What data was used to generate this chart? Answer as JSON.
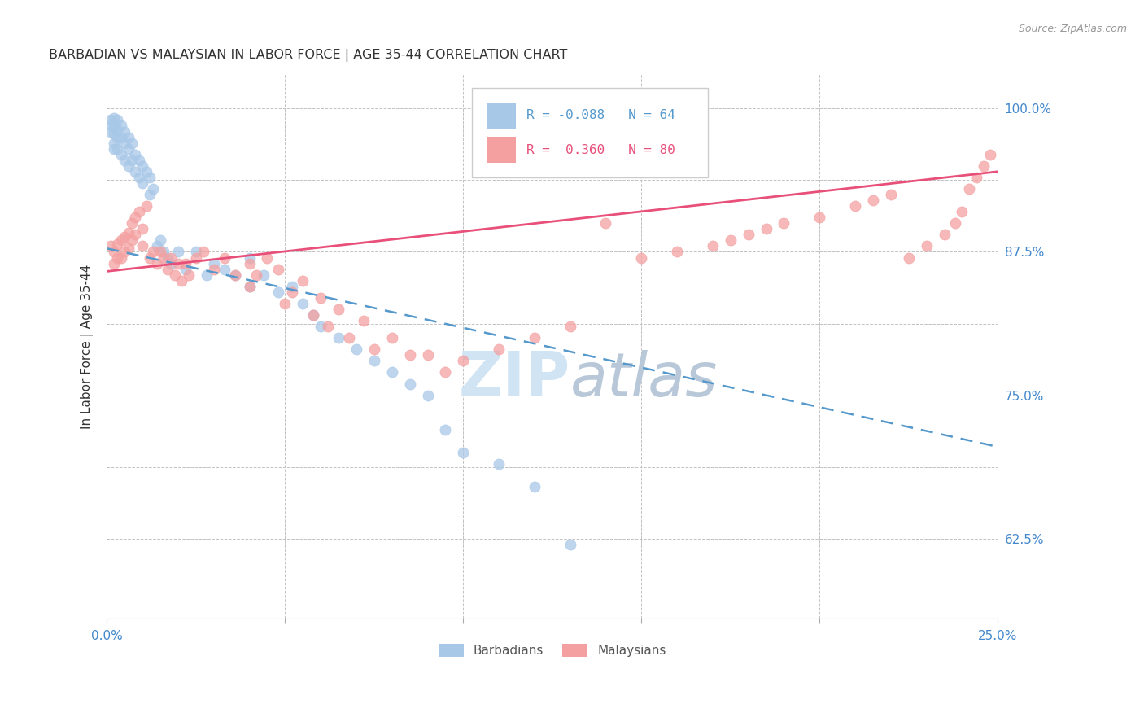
{
  "title": "BARBADIAN VS MALAYSIAN IN LABOR FORCE | AGE 35-44 CORRELATION CHART",
  "source": "Source: ZipAtlas.com",
  "ylabel": "In Labor Force | Age 35-44",
  "xlim": [
    0.0,
    0.25
  ],
  "ylim": [
    0.555,
    1.03
  ],
  "blue_color": "#a8c8e8",
  "pink_color": "#f4a0a0",
  "blue_line_color": "#5599cc",
  "pink_line_color": "#e8507a",
  "watermark_color": "#d0e4f4",
  "blue_scatter_x": [
    0.001,
    0.001,
    0.001,
    0.002,
    0.002,
    0.002,
    0.002,
    0.002,
    0.003,
    0.003,
    0.003,
    0.003,
    0.004,
    0.004,
    0.004,
    0.005,
    0.005,
    0.005,
    0.006,
    0.006,
    0.006,
    0.007,
    0.007,
    0.008,
    0.008,
    0.009,
    0.009,
    0.01,
    0.01,
    0.011,
    0.012,
    0.012,
    0.013,
    0.014,
    0.015,
    0.016,
    0.017,
    0.018,
    0.02,
    0.022,
    0.025,
    0.028,
    0.03,
    0.033,
    0.036,
    0.04,
    0.04,
    0.044,
    0.048,
    0.052,
    0.055,
    0.058,
    0.06,
    0.065,
    0.07,
    0.075,
    0.08,
    0.085,
    0.09,
    0.095,
    0.1,
    0.11,
    0.12,
    0.13
  ],
  "blue_scatter_y": [
    0.99,
    0.985,
    0.98,
    0.992,
    0.985,
    0.978,
    0.97,
    0.965,
    0.99,
    0.982,
    0.975,
    0.965,
    0.985,
    0.975,
    0.96,
    0.98,
    0.97,
    0.955,
    0.975,
    0.965,
    0.95,
    0.97,
    0.955,
    0.96,
    0.945,
    0.955,
    0.94,
    0.95,
    0.935,
    0.945,
    0.94,
    0.925,
    0.93,
    0.88,
    0.885,
    0.875,
    0.87,
    0.865,
    0.875,
    0.86,
    0.875,
    0.855,
    0.865,
    0.86,
    0.855,
    0.87,
    0.845,
    0.855,
    0.84,
    0.845,
    0.83,
    0.82,
    0.81,
    0.8,
    0.79,
    0.78,
    0.77,
    0.76,
    0.75,
    0.72,
    0.7,
    0.69,
    0.67,
    0.62
  ],
  "pink_scatter_x": [
    0.001,
    0.002,
    0.002,
    0.003,
    0.003,
    0.004,
    0.004,
    0.005,
    0.005,
    0.006,
    0.006,
    0.007,
    0.007,
    0.008,
    0.008,
    0.009,
    0.01,
    0.01,
    0.011,
    0.012,
    0.013,
    0.014,
    0.015,
    0.016,
    0.017,
    0.018,
    0.019,
    0.02,
    0.021,
    0.022,
    0.023,
    0.025,
    0.027,
    0.03,
    0.033,
    0.036,
    0.04,
    0.04,
    0.042,
    0.045,
    0.048,
    0.05,
    0.052,
    0.055,
    0.058,
    0.06,
    0.062,
    0.065,
    0.068,
    0.072,
    0.075,
    0.08,
    0.085,
    0.09,
    0.095,
    0.1,
    0.11,
    0.12,
    0.13,
    0.14,
    0.15,
    0.16,
    0.17,
    0.175,
    0.18,
    0.185,
    0.19,
    0.2,
    0.21,
    0.215,
    0.22,
    0.225,
    0.23,
    0.235,
    0.238,
    0.24,
    0.242,
    0.244,
    0.246,
    0.248
  ],
  "pink_scatter_y": [
    0.88,
    0.875,
    0.865,
    0.882,
    0.87,
    0.885,
    0.87,
    0.888,
    0.875,
    0.892,
    0.878,
    0.9,
    0.885,
    0.905,
    0.89,
    0.91,
    0.895,
    0.88,
    0.915,
    0.87,
    0.875,
    0.865,
    0.875,
    0.87,
    0.86,
    0.87,
    0.855,
    0.865,
    0.85,
    0.865,
    0.855,
    0.87,
    0.875,
    0.86,
    0.87,
    0.855,
    0.865,
    0.845,
    0.855,
    0.87,
    0.86,
    0.83,
    0.84,
    0.85,
    0.82,
    0.835,
    0.81,
    0.825,
    0.8,
    0.815,
    0.79,
    0.8,
    0.785,
    0.785,
    0.77,
    0.78,
    0.79,
    0.8,
    0.81,
    0.9,
    0.87,
    0.875,
    0.88,
    0.885,
    0.89,
    0.895,
    0.9,
    0.905,
    0.915,
    0.92,
    0.925,
    0.87,
    0.88,
    0.89,
    0.9,
    0.91,
    0.93,
    0.94,
    0.95,
    0.96
  ],
  "blue_line_x0": 0.0,
  "blue_line_x1": 0.25,
  "blue_line_y0": 0.878,
  "blue_line_y1": 0.705,
  "pink_line_x0": 0.0,
  "pink_line_x1": 0.25,
  "pink_line_y0": 0.858,
  "pink_line_y1": 0.945
}
